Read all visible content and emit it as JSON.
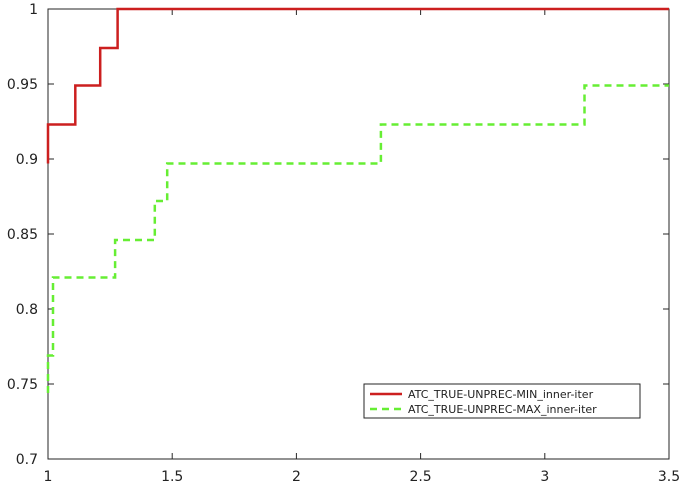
{
  "chart_data": {
    "type": "line",
    "title": "",
    "xlabel": "",
    "ylabel": "",
    "xlim": [
      1,
      3.5
    ],
    "ylim": [
      0.7,
      1
    ],
    "x_ticks": [
      1,
      1.5,
      2,
      2.5,
      3,
      3.5
    ],
    "x_tick_labels": [
      "1",
      "1.5",
      "2",
      "2.5",
      "3",
      "3.5"
    ],
    "y_ticks": [
      0.7,
      0.75,
      0.8,
      0.85,
      0.9,
      0.95,
      1
    ],
    "y_tick_labels": [
      "0.7",
      "0.75",
      "0.8",
      "0.85",
      "0.9",
      "0.95",
      "1"
    ],
    "grid": false,
    "legend_position": "bottom-right",
    "series": [
      {
        "name": "ATC_TRUE-UNPREC-MIN_inner-iter",
        "color": "#cc1f1f",
        "dash": "solid",
        "step": true,
        "x": [
          1.0,
          1.0,
          1.11,
          1.11,
          1.21,
          1.21,
          1.28,
          1.28,
          3.5
        ],
        "y": [
          0.897,
          0.923,
          0.923,
          0.949,
          0.949,
          0.974,
          0.974,
          1.0,
          1.0
        ]
      },
      {
        "name": "ATC_TRUE-UNPREC-MAX_inner-iter",
        "color": "#66ee33",
        "dash": "dashed",
        "step": true,
        "x": [
          1.0,
          1.0,
          1.02,
          1.02,
          1.27,
          1.27,
          1.43,
          1.43,
          1.48,
          1.48,
          2.34,
          2.34,
          3.16,
          3.16,
          3.5
        ],
        "y": [
          0.744,
          0.769,
          0.769,
          0.821,
          0.821,
          0.846,
          0.846,
          0.872,
          0.872,
          0.897,
          0.897,
          0.923,
          0.923,
          0.949,
          0.949
        ]
      }
    ]
  }
}
